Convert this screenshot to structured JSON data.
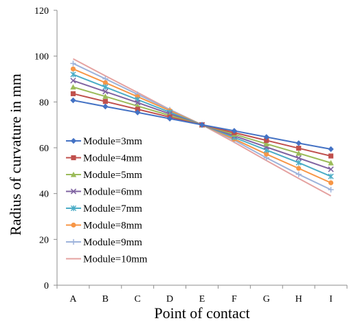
{
  "chart_data": {
    "type": "line",
    "xlabel": "Point of contact",
    "ylabel": "Radius of curvature in mm",
    "categories": [
      "A",
      "B",
      "C",
      "D",
      "E",
      "F",
      "G",
      "H",
      "I"
    ],
    "ylim": [
      0,
      120
    ],
    "yticks": [
      0,
      20,
      40,
      60,
      80,
      100,
      120
    ],
    "grid": false,
    "legend_position": "left-middle",
    "series": [
      {
        "name": "Module=3mm",
        "color": "#4472C4",
        "marker": "diamond",
        "values": [
          80.7,
          78.0,
          75.4,
          72.7,
          70.0,
          67.4,
          64.7,
          62.0,
          59.4
        ]
      },
      {
        "name": "Module=4mm",
        "color": "#C0504D",
        "marker": "square",
        "values": [
          83.6,
          80.2,
          76.8,
          73.4,
          70.0,
          66.6,
          63.2,
          59.8,
          56.4
        ]
      },
      {
        "name": "Module=5mm",
        "color": "#9BBB59",
        "marker": "triangle",
        "values": [
          86.5,
          82.4,
          78.2,
          74.1,
          70.0,
          65.9,
          61.7,
          57.6,
          53.4
        ]
      },
      {
        "name": "Module=6mm",
        "color": "#8064A2",
        "marker": "x",
        "values": [
          89.3,
          84.5,
          79.7,
          74.8,
          70.0,
          65.2,
          60.3,
          55.5,
          50.6
        ]
      },
      {
        "name": "Module=7mm",
        "color": "#4BACC6",
        "marker": "star",
        "values": [
          92.0,
          86.5,
          81.0,
          75.5,
          70.0,
          64.5,
          59.0,
          53.5,
          47.5
        ]
      },
      {
        "name": "Module=8mm",
        "color": "#F79646",
        "marker": "circle",
        "values": [
          94.4,
          88.4,
          82.3,
          76.2,
          70.0,
          63.8,
          57.2,
          51.0,
          44.7
        ]
      },
      {
        "name": "Module=9mm",
        "color": "#9DB3DB",
        "marker": "plus",
        "values": [
          96.8,
          90.1,
          83.3,
          76.6,
          70.0,
          63.3,
          55.6,
          48.4,
          41.7
        ]
      },
      {
        "name": "Module=10mm",
        "color": "#E5A2A0",
        "marker": "none",
        "values": [
          98.8,
          91.4,
          84.1,
          76.7,
          70.0,
          62.4,
          54.4,
          46.6,
          39.0
        ]
      }
    ]
  }
}
